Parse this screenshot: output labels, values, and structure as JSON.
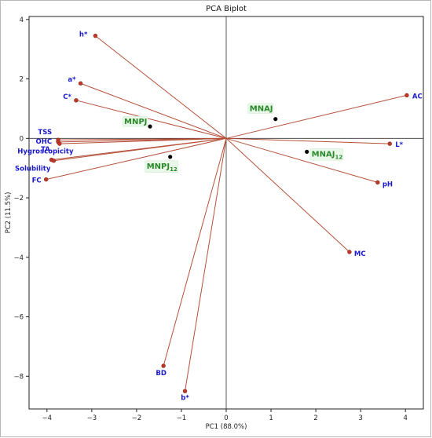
{
  "chart_data": {
    "type": "biplot",
    "title": "PCA Biplot",
    "xlabel": "PC1 (88.0%)",
    "ylabel": "PC2 (11.5%)",
    "xlim": [
      -4.4,
      4.4
    ],
    "ylim": [
      -9.1,
      4.1
    ],
    "xticks": [
      -4,
      -3,
      -2,
      -1,
      0,
      1,
      2,
      3,
      4
    ],
    "yticks": [
      -8,
      -6,
      -4,
      -2,
      0,
      2,
      4
    ],
    "grid": false,
    "colors": {
      "loading_line": "#b5503a",
      "loading_point": "#c0392b",
      "variable_label": "#1a1acc",
      "sample_point": "#000000",
      "sample_label": "#2a8a2a",
      "sample_label_bg": "#e9f7e9"
    },
    "variables": [
      {
        "name": "h*",
        "x": -2.92,
        "y": 3.45
      },
      {
        "name": "a*",
        "x": -3.25,
        "y": 1.85
      },
      {
        "name": "C*",
        "x": -3.35,
        "y": 1.28
      },
      {
        "name": "TSS",
        "x": -3.75,
        "y": -0.05
      },
      {
        "name": "OHC",
        "x": -3.75,
        "y": -0.12
      },
      {
        "name": "TA",
        "x": -3.72,
        "y": -0.18
      },
      {
        "name": "Hygroscopicity",
        "x": -3.9,
        "y": -0.72
      },
      {
        "name": "Solubility",
        "x": -3.85,
        "y": -0.75
      },
      {
        "name": "FC",
        "x": -4.02,
        "y": -1.38
      },
      {
        "name": "AC",
        "x": 4.03,
        "y": 1.45
      },
      {
        "name": "L*",
        "x": 3.65,
        "y": -0.18
      },
      {
        "name": "pH",
        "x": 3.38,
        "y": -1.48
      },
      {
        "name": "MC",
        "x": 2.75,
        "y": -3.82
      },
      {
        "name": "BD",
        "x": -1.4,
        "y": -7.65
      },
      {
        "name": "b*",
        "x": -0.92,
        "y": -8.5
      }
    ],
    "samples": [
      {
        "name": "MNPJ",
        "sub": "",
        "x": -1.7,
        "y": 0.4
      },
      {
        "name": "MNPJ",
        "sub": "12",
        "x": -1.25,
        "y": -0.62
      },
      {
        "name": "MNAJ",
        "sub": "",
        "x": 1.1,
        "y": 0.65
      },
      {
        "name": "MNAJ",
        "sub": "12",
        "x": 1.8,
        "y": -0.45
      }
    ]
  }
}
